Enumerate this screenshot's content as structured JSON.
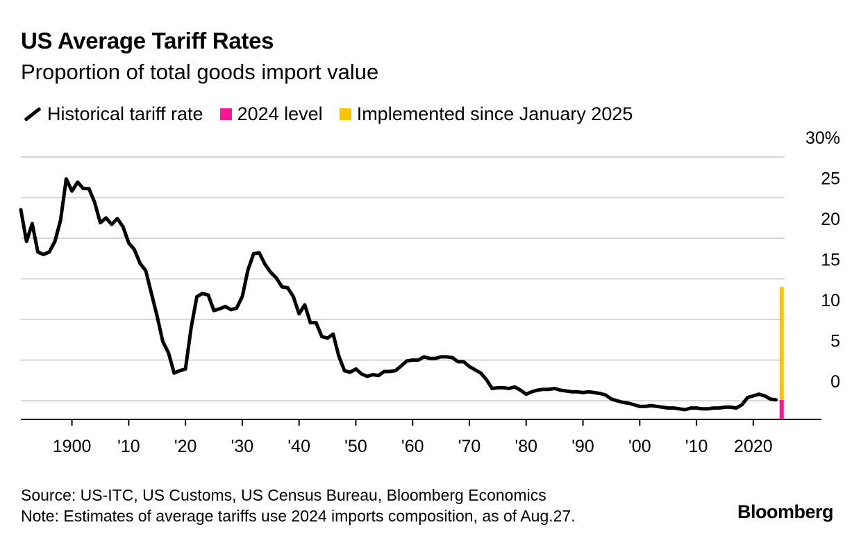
{
  "chart_data": {
    "type": "line",
    "title": "US Average Tariff Rates",
    "subtitle": "Proportion of total goods import value",
    "legend": [
      {
        "label": "Historical tariff rate",
        "color": "#000000",
        "kind": "line"
      },
      {
        "label": "2024 level",
        "color": "#ff1493",
        "kind": "swatch"
      },
      {
        "label": "Implemented since January 2025",
        "color": "#ffc400",
        "kind": "swatch"
      }
    ],
    "y_ticks": [
      "0",
      "5",
      "10",
      "15",
      "20",
      "25",
      "30%"
    ],
    "y_tick_values": [
      0,
      5,
      10,
      15,
      20,
      25,
      30
    ],
    "ylim": [
      -2.3,
      30
    ],
    "xlim": [
      1891,
      2032
    ],
    "x_ticks": [
      "1900",
      "'10",
      "'20",
      "'30",
      "'40",
      "'50",
      "'60",
      "'70",
      "'80",
      "'90",
      "'00",
      "'10",
      "2020"
    ],
    "x_tick_values": [
      1900,
      1910,
      1920,
      1930,
      1940,
      1950,
      1960,
      1970,
      1980,
      1990,
      2000,
      2010,
      2020
    ],
    "legend_position": "top-left",
    "grid": true,
    "series": [
      {
        "name": "Historical tariff rate",
        "x": [
          1891,
          1892,
          1893,
          1894,
          1895,
          1896,
          1897,
          1898,
          1899,
          1900,
          1901,
          1902,
          1903,
          1904,
          1905,
          1906,
          1907,
          1908,
          1909,
          1910,
          1911,
          1912,
          1913,
          1914,
          1915,
          1916,
          1917,
          1918,
          1919,
          1920,
          1921,
          1922,
          1923,
          1924,
          1925,
          1926,
          1927,
          1928,
          1929,
          1930,
          1931,
          1932,
          1933,
          1934,
          1935,
          1936,
          1937,
          1938,
          1939,
          1940,
          1941,
          1942,
          1943,
          1944,
          1945,
          1946,
          1947,
          1948,
          1949,
          1950,
          1951,
          1952,
          1953,
          1954,
          1955,
          1956,
          1957,
          1958,
          1959,
          1960,
          1961,
          1962,
          1963,
          1964,
          1965,
          1966,
          1967,
          1968,
          1969,
          1970,
          1971,
          1972,
          1973,
          1974,
          1975,
          1976,
          1977,
          1978,
          1979,
          1980,
          1981,
          1982,
          1983,
          1984,
          1985,
          1986,
          1987,
          1988,
          1989,
          1990,
          1991,
          1992,
          1993,
          1994,
          1995,
          1996,
          1997,
          1998,
          1999,
          2000,
          2001,
          2002,
          2003,
          2004,
          2005,
          2006,
          2007,
          2008,
          2009,
          2010,
          2011,
          2012,
          2013,
          2014,
          2015,
          2016,
          2017,
          2018,
          2019,
          2020,
          2021,
          2022,
          2023,
          2024
        ],
        "values": [
          23.5,
          19.6,
          21.8,
          18.3,
          18.0,
          18.3,
          19.6,
          22.2,
          27.3,
          25.8,
          26.9,
          26.1,
          26.1,
          24.4,
          21.9,
          22.5,
          21.7,
          22.4,
          21.4,
          19.4,
          18.6,
          16.9,
          16.0,
          13.2,
          10.4,
          7.3,
          5.9,
          3.4,
          3.7,
          3.9,
          9.0,
          12.8,
          13.2,
          13.0,
          11.1,
          11.3,
          11.6,
          11.2,
          11.4,
          12.8,
          16.1,
          18.1,
          18.2,
          16.8,
          15.8,
          15.1,
          14.0,
          13.9,
          12.8,
          10.7,
          11.8,
          9.6,
          9.6,
          7.9,
          7.7,
          8.2,
          5.5,
          3.7,
          3.5,
          3.9,
          3.3,
          3.0,
          3.2,
          3.1,
          3.6,
          3.6,
          3.7,
          4.3,
          4.9,
          5.0,
          5.0,
          5.4,
          5.2,
          5.2,
          5.4,
          5.4,
          5.3,
          4.8,
          4.8,
          4.2,
          3.8,
          3.4,
          2.6,
          1.5,
          1.6,
          1.6,
          1.5,
          1.7,
          1.3,
          0.8,
          1.1,
          1.3,
          1.4,
          1.4,
          1.5,
          1.3,
          1.2,
          1.1,
          1.1,
          1.0,
          1.1,
          1.0,
          0.9,
          0.7,
          0.2,
          0.0,
          -0.2,
          -0.3,
          -0.5,
          -0.7,
          -0.7,
          -0.6,
          -0.7,
          -0.8,
          -0.9,
          -0.9,
          -1.0,
          -1.1,
          -0.9,
          -0.9,
          -1.0,
          -1.0,
          -0.9,
          -0.9,
          -0.8,
          -0.8,
          -0.9,
          -0.5,
          0.4,
          0.6,
          0.8,
          0.6,
          0.2,
          0.1
        ],
        "color": "#000000"
      }
    ],
    "bars": [
      {
        "name": "2024 level",
        "x": 2025,
        "from": -2.3,
        "to": 0.1,
        "color": "#ff1493"
      },
      {
        "name": "Implemented since January 2025",
        "x": 2025,
        "from": 0.1,
        "to": 14.0,
        "color": "#ffc400"
      }
    ]
  },
  "footer": {
    "source": "Source: US-ITC, US Customs, US Census Bureau, Bloomberg Economics",
    "note": "Note: Estimates of average tariffs use 2024 imports composition, as of Aug.27.",
    "brand": "Bloomberg"
  }
}
